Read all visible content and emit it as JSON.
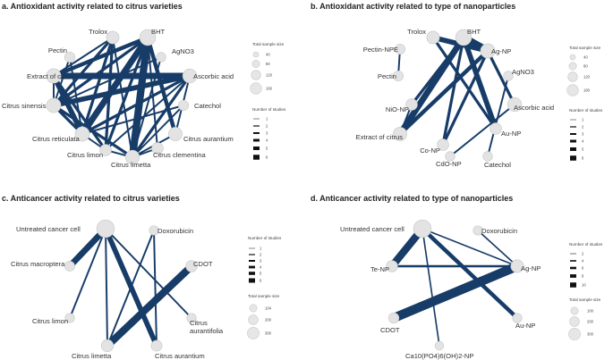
{
  "colors": {
    "edge": "#173c68",
    "node_fill": "#e3e3e3",
    "node_stroke": "#c6c6c6"
  },
  "panels": [
    {
      "id": "a",
      "title": "a. Antioxidant activity related to citrus varieties",
      "nodes": [
        {
          "id": "trolox",
          "label": "Trolox",
          "size": 80
        },
        {
          "id": "bht",
          "label": "BHT",
          "size": 160
        },
        {
          "id": "pectin",
          "label": "Pectin",
          "size": 40
        },
        {
          "id": "agno3",
          "label": "AgNO3",
          "size": 30
        },
        {
          "id": "extract",
          "label": "Extract of citrus",
          "size": 120
        },
        {
          "id": "ascorbic",
          "label": "Ascorbic acid",
          "size": 110
        },
        {
          "id": "sinensis",
          "label": "Citrus sinensis",
          "size": 120
        },
        {
          "id": "catechol",
          "label": "Catechol",
          "size": 40
        },
        {
          "id": "reticulata",
          "label": "Citrus reticulata",
          "size": 120
        },
        {
          "id": "aurantium",
          "label": "Citrus aurantium",
          "size": 100
        },
        {
          "id": "limon",
          "label": "Citrus limon",
          "size": 60
        },
        {
          "id": "limetta",
          "label": "Citrus limetta",
          "size": 110
        },
        {
          "id": "clementina",
          "label": "Citrus clementina",
          "size": 60
        }
      ],
      "edges": [
        {
          "s": "bht",
          "t": "limetta",
          "n": 6
        },
        {
          "s": "bht",
          "t": "reticulata",
          "n": 5
        },
        {
          "s": "bht",
          "t": "extract",
          "n": 3
        },
        {
          "s": "bht",
          "t": "sinensis",
          "n": 2
        },
        {
          "s": "bht",
          "t": "limon",
          "n": 2
        },
        {
          "s": "bht",
          "t": "aurantium",
          "n": 3
        },
        {
          "s": "bht",
          "t": "clementina",
          "n": 1
        },
        {
          "s": "trolox",
          "t": "reticulata",
          "n": 2
        },
        {
          "s": "trolox",
          "t": "sinensis",
          "n": 2
        },
        {
          "s": "trolox",
          "t": "limon",
          "n": 2
        },
        {
          "s": "trolox",
          "t": "limetta",
          "n": 1
        },
        {
          "s": "trolox",
          "t": "extract",
          "n": 1
        },
        {
          "s": "ascorbic",
          "t": "extract",
          "n": 5
        },
        {
          "s": "ascorbic",
          "t": "sinensis",
          "n": 4
        },
        {
          "s": "ascorbic",
          "t": "reticulata",
          "n": 2
        },
        {
          "s": "ascorbic",
          "t": "limetta",
          "n": 2
        },
        {
          "s": "ascorbic",
          "t": "aurantium",
          "n": 1
        },
        {
          "s": "ascorbic",
          "t": "limon",
          "n": 1
        },
        {
          "s": "extract",
          "t": "reticulata",
          "n": 4
        },
        {
          "s": "extract",
          "t": "limon",
          "n": 2
        },
        {
          "s": "extract",
          "t": "sinensis",
          "n": 1
        },
        {
          "s": "sinensis",
          "t": "reticulata",
          "n": 2
        },
        {
          "s": "sinensis",
          "t": "limetta",
          "n": 2
        },
        {
          "s": "pectin",
          "t": "sinensis",
          "n": 1
        },
        {
          "s": "pectin",
          "t": "reticulata",
          "n": 1
        },
        {
          "s": "agno3",
          "t": "limetta",
          "n": 1
        },
        {
          "s": "agno3",
          "t": "sinensis",
          "n": 1
        },
        {
          "s": "catechol",
          "t": "limetta",
          "n": 1
        },
        {
          "s": "catechol",
          "t": "reticulata",
          "n": 1
        },
        {
          "s": "reticulata",
          "t": "limon",
          "n": 1
        },
        {
          "s": "limon",
          "t": "limetta",
          "n": 1
        },
        {
          "s": "clementina",
          "t": "limetta",
          "n": 1
        },
        {
          "s": "aurantium",
          "t": "limetta",
          "n": 1
        }
      ],
      "legend_size": {
        "title": "Total sample size",
        "values": [
          "40",
          "80",
          "120",
          "160"
        ]
      },
      "legend_studies": {
        "title": "Number of studies",
        "values": [
          "1",
          "2",
          "3",
          "4",
          "5",
          "6"
        ]
      }
    },
    {
      "id": "b",
      "title": "b. Antioxidant activity related to type of nanoparticles",
      "nodes": [
        {
          "id": "trolox",
          "label": "Trolox",
          "size": 80
        },
        {
          "id": "bht",
          "label": "BHT",
          "size": 160
        },
        {
          "id": "pectinnpe",
          "label": "Pectin-NPE",
          "size": 40
        },
        {
          "id": "agnp",
          "label": "Ag-NP",
          "size": 120
        },
        {
          "id": "pectin",
          "label": "Pectin",
          "size": 40
        },
        {
          "id": "agno3",
          "label": "AgNO3",
          "size": 30
        },
        {
          "id": "nionp",
          "label": "NiO-NP",
          "size": 60
        },
        {
          "id": "ascorbic",
          "label": "Ascorbic acid",
          "size": 110
        },
        {
          "id": "extract",
          "label": "Extract of citrus",
          "size": 100
        },
        {
          "id": "aunp",
          "label": "Au-NP",
          "size": 60
        },
        {
          "id": "conp",
          "label": "Co-NP",
          "size": 60
        },
        {
          "id": "cdonp",
          "label": "CdO-NP",
          "size": 30
        },
        {
          "id": "catechol",
          "label": "Catechol",
          "size": 30
        }
      ],
      "edges": [
        {
          "s": "bht",
          "t": "agnp",
          "n": 6
        },
        {
          "s": "bht",
          "t": "extract",
          "n": 5
        },
        {
          "s": "bht",
          "t": "aunp",
          "n": 4
        },
        {
          "s": "bht",
          "t": "conp",
          "n": 2
        },
        {
          "s": "bht",
          "t": "nionp",
          "n": 2
        },
        {
          "s": "trolox",
          "t": "agnp",
          "n": 4
        },
        {
          "s": "trolox",
          "t": "aunp",
          "n": 2
        },
        {
          "s": "agnp",
          "t": "extract",
          "n": 3
        },
        {
          "s": "agnp",
          "t": "ascorbic",
          "n": 2
        },
        {
          "s": "agnp",
          "t": "conp",
          "n": 2
        },
        {
          "s": "ascorbic",
          "t": "cdonp",
          "n": 1
        },
        {
          "s": "pectinnpe",
          "t": "pectin",
          "n": 1
        },
        {
          "s": "agno3",
          "t": "catechol",
          "n": 1
        },
        {
          "s": "nionp",
          "t": "extract",
          "n": 1
        }
      ],
      "legend_size": {
        "title": "Total sample size",
        "values": [
          "40",
          "80",
          "120",
          "160"
        ]
      },
      "legend_studies": {
        "title": "Number of studies",
        "values": [
          "1",
          "2",
          "3",
          "4",
          "5",
          "6"
        ]
      }
    },
    {
      "id": "c",
      "title": "c. Anticancer activity related to citrus varieties",
      "nodes": [
        {
          "id": "untreated",
          "label": "Untreated cancer cell",
          "size": 300
        },
        {
          "id": "doxorubicin",
          "label": "Doxorubicin",
          "size": 40
        },
        {
          "id": "macroptera",
          "label": "Citrus macroptera",
          "size": 50
        },
        {
          "id": "cdot",
          "label": "CDOT",
          "size": 80
        },
        {
          "id": "limon",
          "label": "Citrus limon",
          "size": 40
        },
        {
          "id": "aurantifolia",
          "label": "Citrus aurantifolia",
          "size": 40
        },
        {
          "id": "limetta",
          "label": "Citrus limetta",
          "size": 100
        },
        {
          "id": "aurantium",
          "label": "Citrus aurantium",
          "size": 70
        }
      ],
      "edges": [
        {
          "s": "untreated",
          "t": "macroptera",
          "n": 5
        },
        {
          "s": "untreated",
          "t": "aurantium",
          "n": 4
        },
        {
          "s": "untreated",
          "t": "limon",
          "n": 1
        },
        {
          "s": "untreated",
          "t": "limetta",
          "n": 1
        },
        {
          "s": "untreated",
          "t": "aurantifolia",
          "n": 1
        },
        {
          "s": "cdot",
          "t": "limetta",
          "n": 6
        },
        {
          "s": "doxorubicin",
          "t": "limetta",
          "n": 1
        },
        {
          "s": "doxorubicin",
          "t": "aurantium",
          "n": 1
        }
      ],
      "legend_size": {
        "title": "Total sample size",
        "values": [
          "104",
          "200",
          "300"
        ]
      },
      "legend_studies": {
        "title": "Number of studies",
        "values": [
          "1",
          "2",
          "3",
          "4",
          "5",
          "6"
        ]
      }
    },
    {
      "id": "d",
      "title": "d. Anticancer activity related to type of nanoparticles",
      "nodes": [
        {
          "id": "untreated",
          "label": "Untreated cancer cell",
          "size": 300
        },
        {
          "id": "doxorubicin",
          "label": "Doxorubicin",
          "size": 40
        },
        {
          "id": "tenp",
          "label": "Te-NP",
          "size": 80
        },
        {
          "id": "agnp",
          "label": "Ag-NP",
          "size": 120
        },
        {
          "id": "cdot",
          "label": "CDOT",
          "size": 60
        },
        {
          "id": "aunp",
          "label": "Au-NP",
          "size": 40
        },
        {
          "id": "canp",
          "label": "Ca10(PO4)6(OH)2-NP",
          "size": 30
        }
      ],
      "edges": [
        {
          "s": "untreated",
          "t": "tenp",
          "n": 8
        },
        {
          "s": "untreated",
          "t": "aunp",
          "n": 4
        },
        {
          "s": "untreated",
          "t": "canp",
          "n": 1
        },
        {
          "s": "untreated",
          "t": "agnp",
          "n": 1
        },
        {
          "s": "cdot",
          "t": "agnp",
          "n": 10
        },
        {
          "s": "tenp",
          "t": "agnp",
          "n": 2
        },
        {
          "s": "doxorubicin",
          "t": "agnp",
          "n": 1
        }
      ],
      "legend_studies": {
        "title": "Number of studies",
        "values": [
          "2",
          "4",
          "6",
          "8",
          "10"
        ]
      },
      "legend_size": {
        "title": "Total sample size",
        "values": [
          "100",
          "200",
          "300"
        ]
      }
    }
  ]
}
